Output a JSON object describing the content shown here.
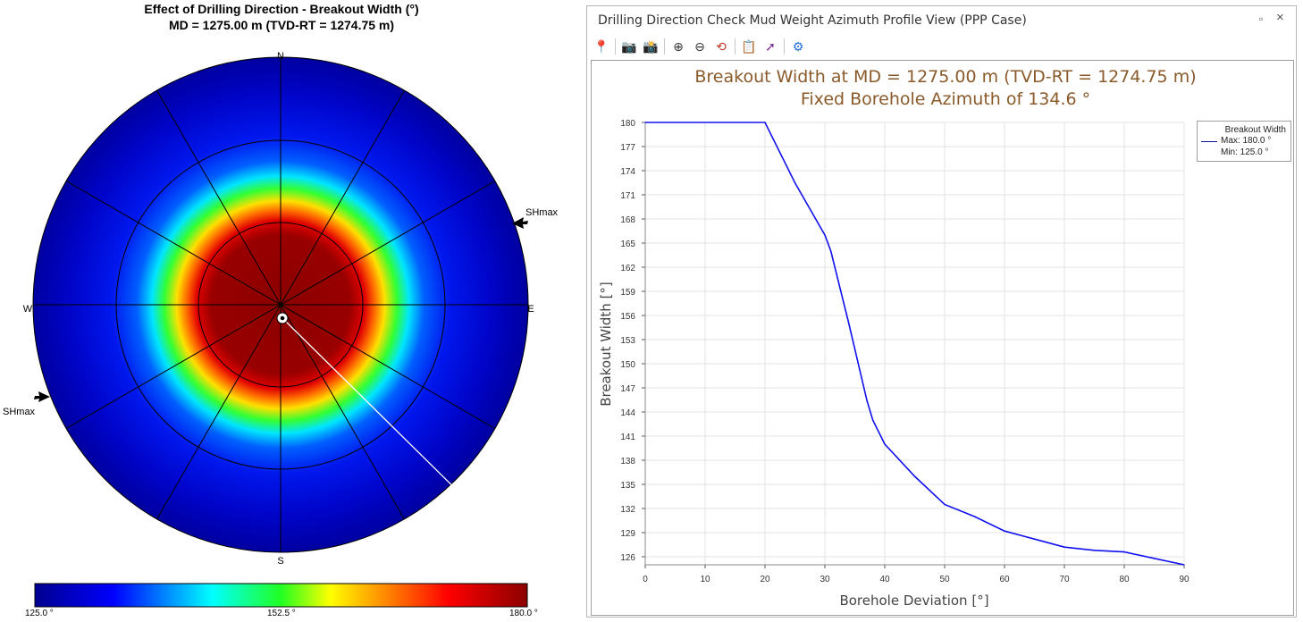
{
  "polar": {
    "title": "Effect of Drilling Direction - Breakout Width (°)",
    "subtitle": "MD = 1275.00 m (TVD-RT = 1274.75 m)",
    "compass": {
      "n": "N",
      "e": "E",
      "s": "S",
      "w": "W"
    },
    "shmax_label": "SHmax",
    "shmax_azimuth_deg": 70,
    "borehole_azimuth_deg": 134.6,
    "colorbar": {
      "min_label": "125.0 °",
      "mid_label": "152.5 °",
      "max_label": "180.0 °",
      "colors": [
        "#00008f",
        "#0000ff",
        "#00ffff",
        "#00ff00",
        "#ffff00",
        "#ff6600",
        "#ff0000",
        "#8b0000"
      ]
    }
  },
  "window": {
    "title": "Drilling Direction Check Mud Weight Azimuth Profile View (PPP Case)",
    "restore_glyph": "▫",
    "close_glyph": "×",
    "toolbar": [
      {
        "name": "pin-icon",
        "glyph": "📍",
        "color": "#1e6fd9"
      },
      {
        "name": "camera-icon",
        "glyph": "📷",
        "color": "#555"
      },
      {
        "name": "camera-save-icon",
        "glyph": "📸",
        "color": "#1a4f8a"
      },
      {
        "name": "zoom-in-icon",
        "glyph": "⊕",
        "color": "#333"
      },
      {
        "name": "zoom-out-icon",
        "glyph": "⊖",
        "color": "#333"
      },
      {
        "name": "zoom-reset-icon",
        "glyph": "⟲",
        "color": "#c0392b"
      },
      {
        "name": "clipboard-icon",
        "glyph": "📋",
        "color": "#1e6fd9"
      },
      {
        "name": "export-icon",
        "glyph": "➚",
        "color": "#7b2a8c"
      },
      {
        "name": "settings-icon",
        "glyph": "⚙",
        "color": "#1e6fd9"
      }
    ]
  },
  "chart_data": {
    "type": "line",
    "title": "Breakout Width at MD = 1275.00 m (TVD-RT = 1274.75 m)",
    "subtitle": "Fixed Borehole Azimuth of 134.6 °",
    "xlabel": "Borehole Deviation [°]",
    "ylabel": "Breakout Width [°]",
    "xlim": [
      0,
      90
    ],
    "ylim": [
      125,
      180
    ],
    "xticks": [
      0,
      10,
      20,
      30,
      40,
      50,
      60,
      70,
      80,
      90
    ],
    "yticks": [
      126,
      129,
      132,
      135,
      138,
      141,
      144,
      147,
      150,
      153,
      156,
      159,
      162,
      165,
      168,
      171,
      174,
      177,
      180
    ],
    "grid": true,
    "legend": {
      "position": "right",
      "title": "Breakout Width",
      "max": "Max: 180.0 °",
      "min": "Min: 125.0 °"
    },
    "series": [
      {
        "color": "#1010ee",
        "x": [
          0,
          20,
          25,
          30,
          31,
          34,
          37,
          38,
          40,
          45,
          50,
          55,
          60,
          65,
          70,
          75,
          80,
          85,
          90
        ],
        "y": [
          180,
          180,
          172.5,
          166,
          164,
          155,
          145.5,
          143,
          140,
          136,
          132.5,
          131,
          129.2,
          128.2,
          127.2,
          126.8,
          126.6,
          125.8,
          125
        ]
      }
    ]
  }
}
